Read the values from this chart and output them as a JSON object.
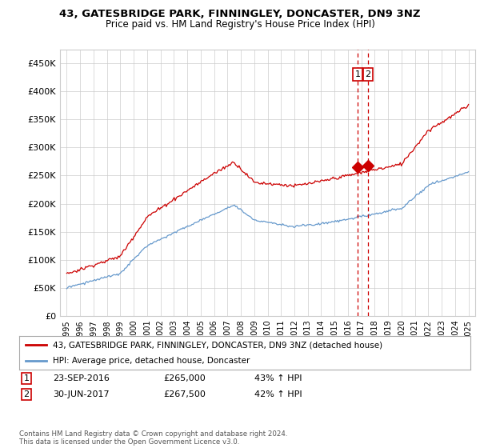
{
  "title": "43, GATESBRIDGE PARK, FINNINGLEY, DONCASTER, DN9 3NZ",
  "subtitle": "Price paid vs. HM Land Registry's House Price Index (HPI)",
  "red_label": "43, GATESBRIDGE PARK, FINNINGLEY, DONCASTER, DN9 3NZ (detached house)",
  "blue_label": "HPI: Average price, detached house, Doncaster",
  "annotation1": {
    "num": "1",
    "date": "23-SEP-2016",
    "price": "£265,000",
    "pct": "43% ↑ HPI"
  },
  "annotation2": {
    "num": "2",
    "date": "30-JUN-2017",
    "price": "£267,500",
    "pct": "42% ↑ HPI"
  },
  "vline1_x": 2016.73,
  "vline2_x": 2017.5,
  "marker1_x": 2016.73,
  "marker1_y": 265000,
  "marker2_x": 2017.5,
  "marker2_y": 267500,
  "ylim": [
    0,
    475000
  ],
  "xlim": [
    1994.5,
    2025.5
  ],
  "yticks": [
    0,
    50000,
    100000,
    150000,
    200000,
    250000,
    300000,
    350000,
    400000,
    450000
  ],
  "xticks": [
    1995,
    1996,
    1997,
    1998,
    1999,
    2000,
    2001,
    2002,
    2003,
    2004,
    2005,
    2006,
    2007,
    2008,
    2009,
    2010,
    2011,
    2012,
    2013,
    2014,
    2015,
    2016,
    2017,
    2018,
    2019,
    2020,
    2021,
    2022,
    2023,
    2024,
    2025
  ],
  "footer": "Contains HM Land Registry data © Crown copyright and database right 2024.\nThis data is licensed under the Open Government Licence v3.0.",
  "background_color": "#ffffff",
  "grid_color": "#cccccc",
  "red_color": "#cc0000",
  "blue_color": "#6699cc"
}
